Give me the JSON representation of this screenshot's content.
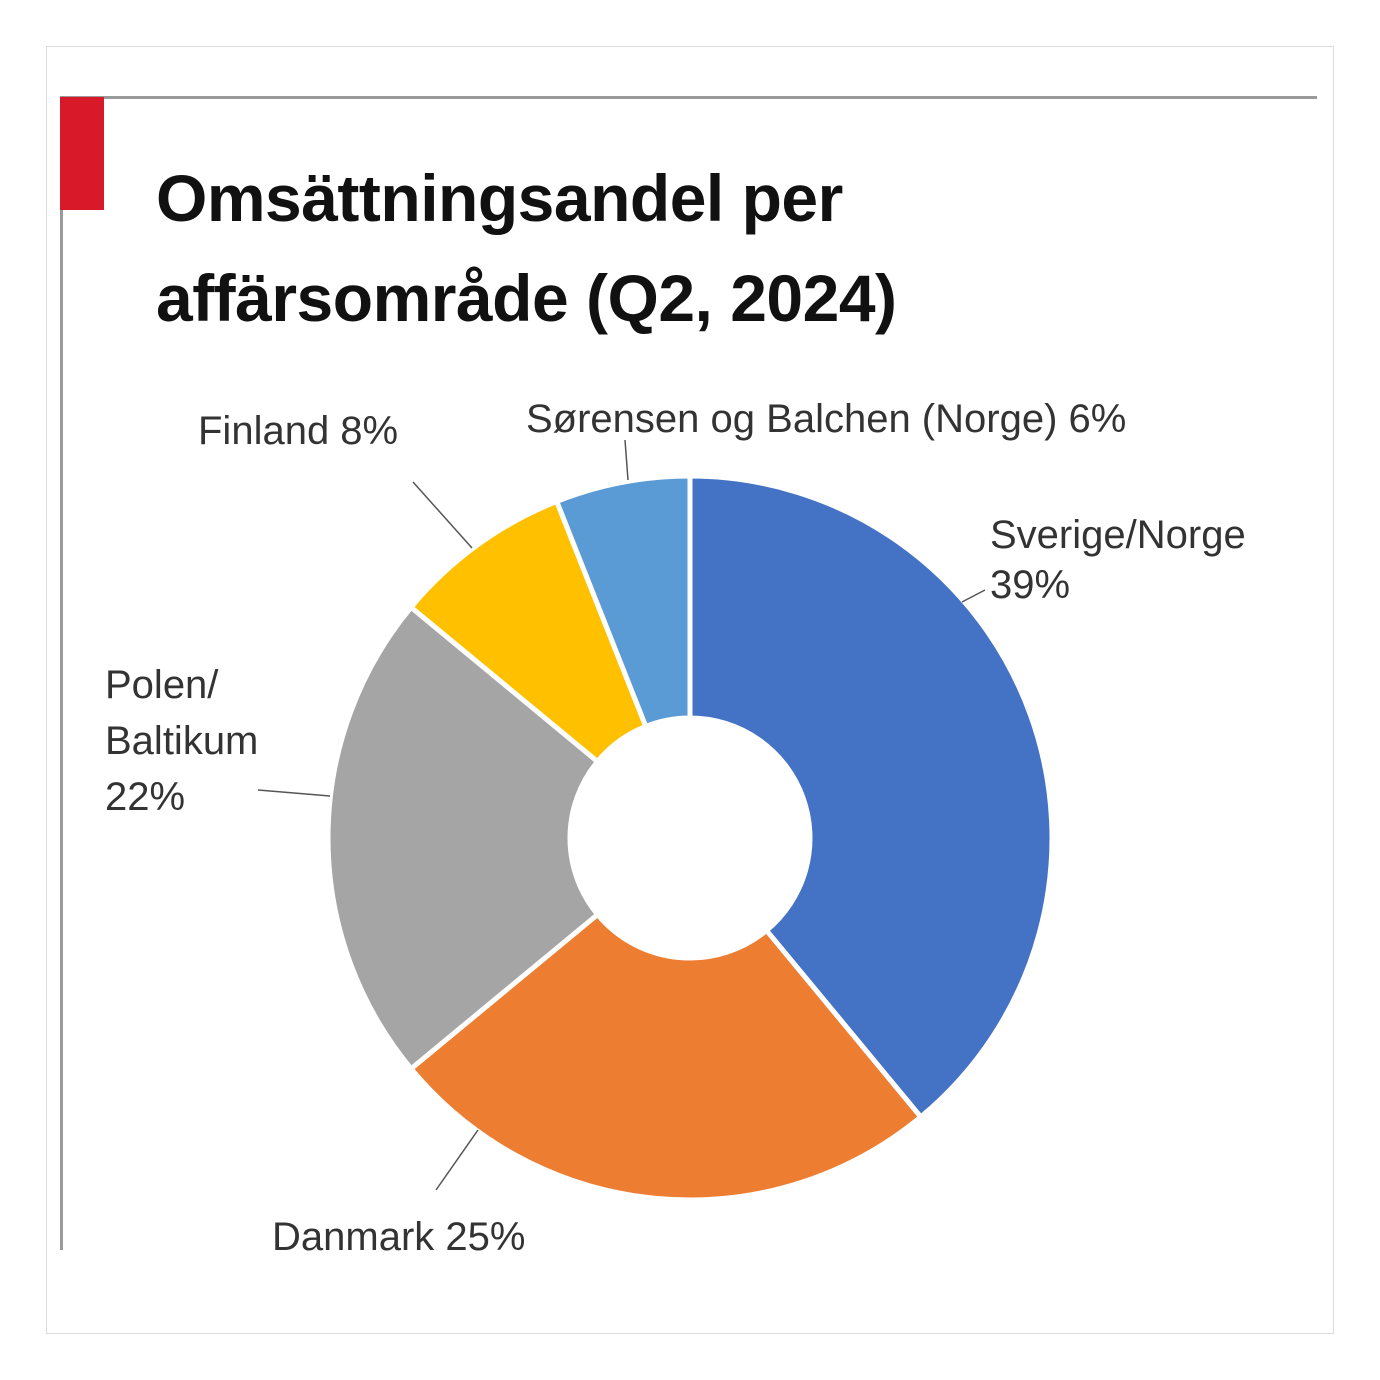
{
  "title": "Omsättningsandel per affärsområde (Q2, 2024)",
  "chart_data": {
    "type": "pie",
    "donut": true,
    "title": "Omsättningsandel per affärsområde (Q2, 2024)",
    "categories": [
      "Sverige/Norge",
      "Danmark",
      "Polen/Baltikum",
      "Finland",
      "Sørensen og Balchen (Norge)"
    ],
    "values": [
      39,
      25,
      22,
      8,
      6
    ],
    "unit": "%",
    "colors": [
      "#4472C4",
      "#ED7D31",
      "#A5A5A5",
      "#FFC000",
      "#5B9BD5"
    ],
    "labels": [
      {
        "lines": [
          "Sverige/Norge",
          "39%"
        ]
      },
      {
        "lines": [
          "Danmark 25%"
        ]
      },
      {
        "lines": [
          "Polen/",
          "Baltikum",
          "22%"
        ]
      },
      {
        "lines": [
          "Finland 8%"
        ]
      },
      {
        "lines": [
          "Sørensen og Balchen (Norge) 6%"
        ]
      }
    ],
    "start": "top",
    "direction": "clockwise",
    "legend": "none"
  },
  "accent_color": "#d7192a"
}
